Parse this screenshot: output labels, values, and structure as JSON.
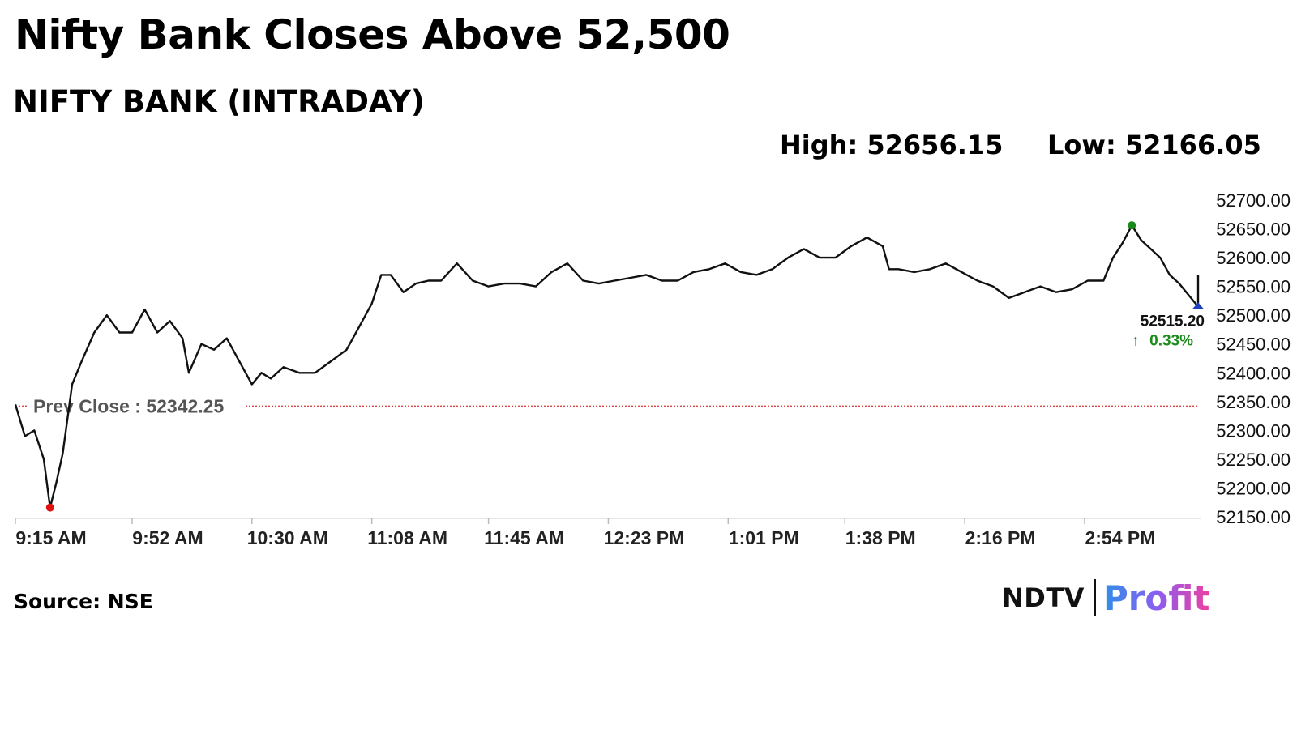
{
  "headline": "Nifty Bank Closes Above 52,500",
  "subtitle": "NIFTY BANK (INTRADAY)",
  "stats": {
    "high": "High: 52656.15",
    "low": "Low: 52166.05"
  },
  "source": "Source: NSE",
  "logo": {
    "left": "NDTV",
    "right": "Profit"
  },
  "chart_data": {
    "type": "line",
    "title": "NIFTY BANK (INTRADAY)",
    "xlabel": "",
    "ylabel": "",
    "ylim": [
      52150,
      52700
    ],
    "y_ticks": [
      "52700.00",
      "52650.00",
      "52600.00",
      "52550.00",
      "52500.00",
      "52450.00",
      "52400.00",
      "52350.00",
      "52300.00",
      "52250.00",
      "52200.00",
      "52150.00"
    ],
    "x_ticks": [
      "9:15 AM",
      "9:52 AM",
      "10:30 AM",
      "11:08 AM",
      "11:45 AM",
      "12:23 PM",
      "1:01 PM",
      "1:38 PM",
      "2:16 PM",
      "2:54 PM"
    ],
    "grid": false,
    "prev_close": 52342.25,
    "prev_close_label": "Prev Close : 52342.25",
    "high": {
      "time": "3:09 PM",
      "value": 52656.15,
      "color": "#1a8a1a"
    },
    "low": {
      "time": "9:26 AM",
      "value": 52166.05,
      "color": "#e01010"
    },
    "last": {
      "time": "3:30 PM",
      "value": 52515.2,
      "label": "52515.20",
      "change": "0.33%",
      "color": "#1f3fbf"
    },
    "series": [
      {
        "x": [
          "9:15 AM",
          "9:18 AM",
          "9:21 AM",
          "9:24 AM",
          "9:26 AM",
          "9:28 AM",
          "9:30 AM",
          "9:33 AM",
          "9:36 AM",
          "9:40 AM",
          "9:44 AM",
          "9:48 AM",
          "9:52 AM",
          "9:56 AM",
          "10:00 AM",
          "10:04 AM",
          "10:08 AM",
          "10:10 AM",
          "10:14 AM",
          "10:18 AM",
          "10:22 AM",
          "10:26 AM",
          "10:30 AM",
          "10:33 AM",
          "10:36 AM",
          "10:40 AM",
          "10:45 AM",
          "10:50 AM",
          "10:55 AM",
          "11:00 AM",
          "11:04 AM",
          "11:08 AM",
          "11:11 AM",
          "11:14 AM",
          "11:18 AM",
          "11:22 AM",
          "11:26 AM",
          "11:30 AM",
          "11:35 AM",
          "11:40 AM",
          "11:45 AM",
          "11:50 AM",
          "11:55 AM",
          "12:00 PM",
          "12:05 PM",
          "12:10 PM",
          "12:15 PM",
          "12:20 PM",
          "12:25 PM",
          "12:30 PM",
          "12:35 PM",
          "12:40 PM",
          "12:45 PM",
          "12:50 PM",
          "12:55 PM",
          "1:00 PM",
          "1:05 PM",
          "1:10 PM",
          "1:15 PM",
          "1:20 PM",
          "1:25 PM",
          "1:30 PM",
          "1:35 PM",
          "1:40 PM",
          "1:45 PM",
          "1:50 PM",
          "1:52 PM",
          "1:55 PM",
          "2:00 PM",
          "2:05 PM",
          "2:10 PM",
          "2:15 PM",
          "2:20 PM",
          "2:25 PM",
          "2:30 PM",
          "2:35 PM",
          "2:40 PM",
          "2:45 PM",
          "2:50 PM",
          "2:55 PM",
          "3:00 PM",
          "3:03 PM",
          "3:06 PM",
          "3:09 PM",
          "3:12 PM",
          "3:15 PM",
          "3:18 PM",
          "3:21 PM",
          "3:24 PM",
          "3:27 PM",
          "3:30 PM"
        ],
        "values": [
          52345,
          52290,
          52300,
          52250,
          52166,
          52210,
          52260,
          52380,
          52420,
          52470,
          52500,
          52470,
          52470,
          52510,
          52470,
          52490,
          52460,
          52400,
          52450,
          52440,
          52460,
          52420,
          52380,
          52400,
          52390,
          52410,
          52400,
          52400,
          52420,
          52440,
          52480,
          52520,
          52570,
          52570,
          52540,
          52555,
          52560,
          52560,
          52590,
          52560,
          52550,
          52555,
          52555,
          52550,
          52575,
          52590,
          52560,
          52555,
          52560,
          52565,
          52570,
          52560,
          52560,
          52575,
          52580,
          52590,
          52575,
          52570,
          52580,
          52600,
          52615,
          52600,
          52600,
          52620,
          52635,
          52620,
          52580,
          52580,
          52575,
          52580,
          52590,
          52575,
          52560,
          52550,
          52530,
          52540,
          52550,
          52540,
          52545,
          52560,
          52560,
          52600,
          52625,
          52656,
          52630,
          52615,
          52600,
          52570,
          52555,
          52535,
          52515
        ]
      }
    ]
  }
}
